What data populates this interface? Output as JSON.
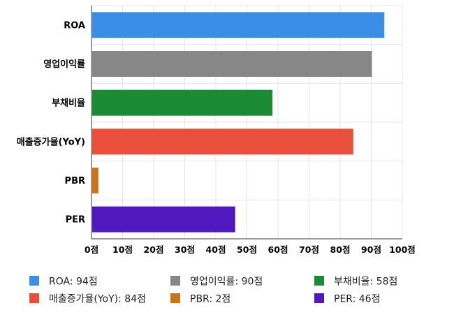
{
  "chart_data": {
    "type": "bar",
    "orientation": "horizontal",
    "categories": [
      "ROA",
      "영업이익률",
      "부채비율",
      "매출증가율(YoY)",
      "PBR",
      "PER"
    ],
    "values": [
      94,
      90,
      58,
      84,
      2,
      46
    ],
    "unit": "점",
    "colors": [
      "#3a8ee6",
      "#878787",
      "#1b8a35",
      "#ea4f3b",
      "#cd7416",
      "#5019c0"
    ],
    "xlim": [
      0,
      100
    ],
    "xticks": [
      0,
      10,
      20,
      30,
      40,
      50,
      60,
      70,
      80,
      90,
      100
    ],
    "xtick_labels": [
      "0점",
      "10점",
      "20점",
      "30점",
      "40점",
      "50점",
      "60점",
      "70점",
      "80점",
      "90점",
      "100점"
    ],
    "grid": true,
    "legend": {
      "placement": "bottom",
      "entries": [
        "ROA: 94점",
        "영업이익률: 90점",
        "부채비율: 58점",
        "매출증가율(YoY): 84점",
        "PBR: 2점",
        "PER: 46점"
      ]
    }
  }
}
